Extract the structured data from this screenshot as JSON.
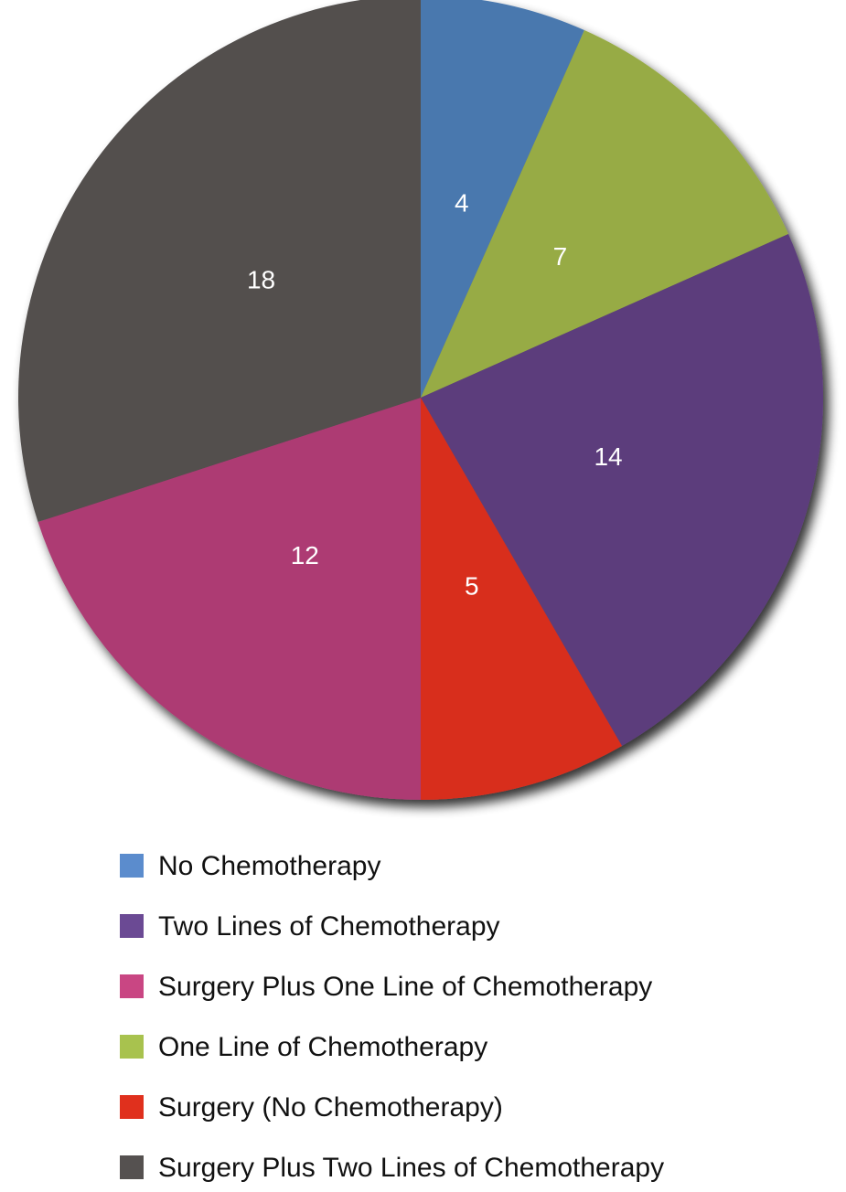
{
  "chart_data": {
    "type": "pie",
    "categories": [
      "No Chemotherapy",
      "One Line of Chemotherapy",
      "Two Lines of Chemotherapy",
      "Surgery (No Chemotherapy)",
      "Surgery Plus One Line of Chemotherapy",
      "Surgery Plus Two Lines of Chemotherapy"
    ],
    "values": [
      4,
      7,
      14,
      5,
      12,
      18
    ],
    "colors": [
      "#4a78ae",
      "#97ab45",
      "#5b3e7c",
      "#d82e1e",
      "#ad3a73",
      "#524f4e"
    ],
    "legend_colors": [
      "#5b8ccd",
      "#a8c24e",
      "#6b4a94",
      "#e0301d",
      "#c94683",
      "#555150"
    ]
  }
}
